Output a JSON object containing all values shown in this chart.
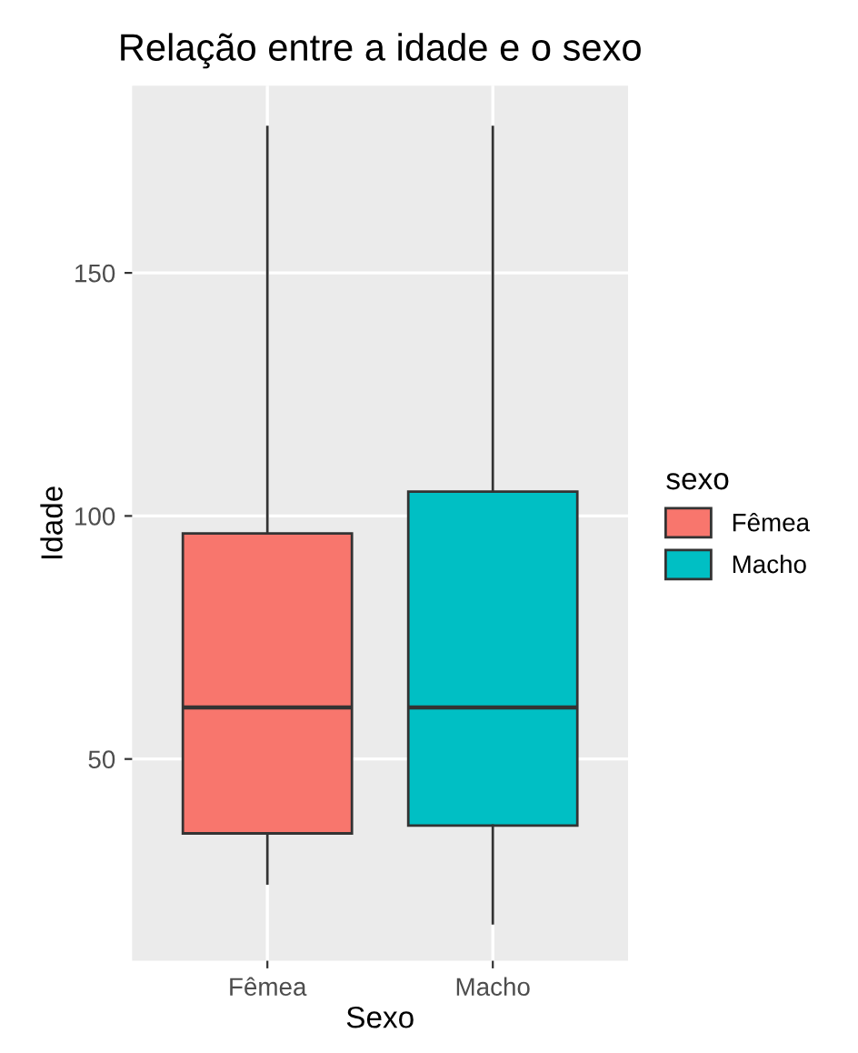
{
  "chart_data": {
    "type": "box",
    "title": "Relação entre a idade e o sexo",
    "xlabel": "Sexo",
    "ylabel": "Idade",
    "legend_title": "sexo",
    "categories": [
      "Fêmea",
      "Macho"
    ],
    "series": [
      {
        "name": "Fêmea",
        "color": "#f8766d",
        "boxes": [
          {
            "low": 24.4,
            "q1": 34.7,
            "median": 60.6,
            "q3": 96.4,
            "high": 180
          },
          null
        ]
      },
      {
        "name": "Macho",
        "color": "#00bfc4",
        "boxes": [
          null,
          {
            "low": 16.2,
            "q1": 36.3,
            "median": 60.6,
            "q3": 105,
            "high": 180
          }
        ]
      }
    ],
    "ylim": [
      8.5,
      188.5
    ],
    "yticks": [
      50,
      100,
      150
    ],
    "grid": true,
    "legend": "right"
  }
}
